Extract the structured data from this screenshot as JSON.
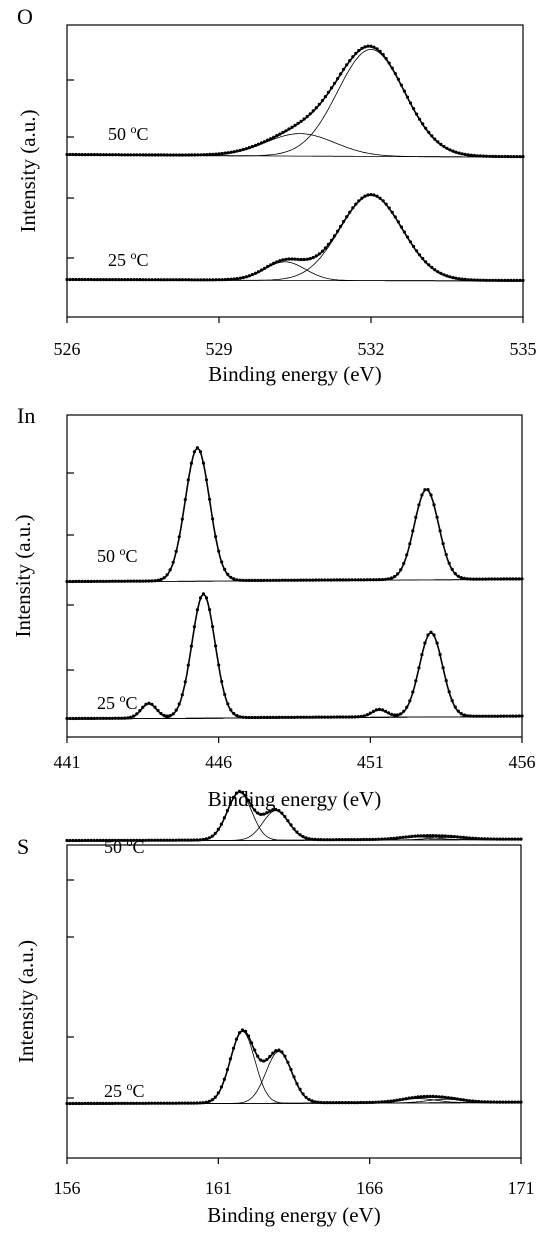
{
  "chart_data": [
    {
      "type": "line",
      "panel_label": "O",
      "xlabel": "Binding energy (eV)",
      "ylabel": "Intensity (a.u.)",
      "xlim": [
        526,
        535
      ],
      "x_ticks": [
        "526",
        "529",
        "532",
        "535"
      ],
      "grid": false,
      "curves": [
        {
          "label_main": "50 ",
          "label_sup": "o",
          "label_tail": "C",
          "baseline": 0.0,
          "base_slope": -0.02,
          "peaks": [
            {
              "center": 532.0,
              "height": 1.0,
              "fwhm": 1.55
            },
            {
              "center": 530.6,
              "height": 0.21,
              "fwhm": 1.6
            }
          ]
        },
        {
          "label_main": "25 ",
          "label_sup": "o",
          "label_tail": "C",
          "baseline": 0.0,
          "base_slope": -0.01,
          "peaks": [
            {
              "center": 532.0,
              "height": 0.92,
              "fwhm": 1.45
            },
            {
              "center": 530.3,
              "height": 0.2,
              "fwhm": 0.95
            }
          ]
        }
      ]
    },
    {
      "type": "line",
      "panel_label": "In",
      "xlabel": "Binding energy (eV)",
      "ylabel": "Intensity (a.u.)",
      "xlim": [
        441,
        456
      ],
      "x_ticks": [
        "441",
        "446",
        "451",
        "456"
      ],
      "grid": false,
      "curves": [
        {
          "label_main": "50 ",
          "label_sup": "o",
          "label_tail": "C",
          "baseline": 0.0,
          "base_slope": 0.02,
          "peaks": [
            {
              "center": 445.3,
              "height": 1.0,
              "fwhm": 0.95
            },
            {
              "center": 452.85,
              "height": 0.68,
              "fwhm": 0.95
            }
          ]
        },
        {
          "label_main": "25 ",
          "label_sup": "o",
          "label_tail": "C",
          "baseline": 0.0,
          "base_slope": 0.02,
          "peaks": [
            {
              "center": 445.5,
              "height": 1.0,
              "fwhm": 0.9
            },
            {
              "center": 443.7,
              "height": 0.12,
              "fwhm": 0.6
            },
            {
              "center": 453.0,
              "height": 0.68,
              "fwhm": 0.9
            },
            {
              "center": 451.3,
              "height": 0.06,
              "fwhm": 0.6
            }
          ]
        }
      ]
    },
    {
      "type": "line",
      "panel_label": "S",
      "xlabel": "Binding energy (eV)",
      "ylabel": "Intensity (a.u.)",
      "xlim": [
        156,
        171
      ],
      "x_ticks": [
        "156",
        "161",
        "166",
        "171"
      ],
      "grid": false,
      "curves": [
        {
          "label_main": "50 ",
          "label_sup": "o",
          "label_tail": "C",
          "baseline": 0.0,
          "base_slope": 0.03,
          "peaks": [
            {
              "center": 161.7,
              "height": 1.0,
              "fwhm": 0.95
            },
            {
              "center": 162.9,
              "height": 0.62,
              "fwhm": 1.0
            },
            {
              "center": 167.6,
              "height": 0.06,
              "fwhm": 1.4
            },
            {
              "center": 168.6,
              "height": 0.05,
              "fwhm": 1.4
            }
          ]
        },
        {
          "label_main": "25 ",
          "label_sup": "o",
          "label_tail": "C",
          "baseline": 0.0,
          "base_slope": 0.02,
          "peaks": [
            {
              "center": 161.8,
              "height": 1.0,
              "fwhm": 0.95
            },
            {
              "center": 163.0,
              "height": 0.72,
              "fwhm": 1.0
            },
            {
              "center": 167.6,
              "height": 0.06,
              "fwhm": 1.4
            },
            {
              "center": 168.5,
              "height": 0.05,
              "fwhm": 1.4
            }
          ]
        }
      ]
    }
  ]
}
